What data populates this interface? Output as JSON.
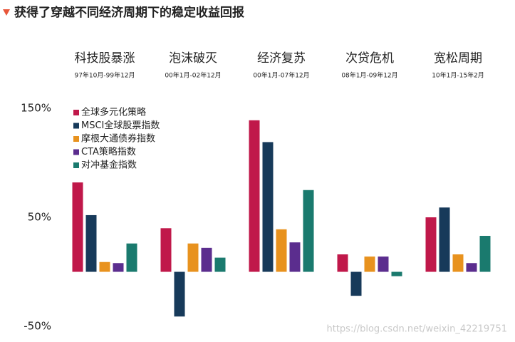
{
  "chart_data": {
    "type": "bar",
    "title": "获得了穿越不同经济周期下的稳定收益回报",
    "categories": [
      "科技股暴涨",
      "泡沫破灭",
      "经济复苏",
      "次贷危机",
      "宽松周期"
    ],
    "category_periods": [
      "97年10月-99年12月",
      "00年1月-02年12月",
      "00年1月-07年12月",
      "08年1月-09年12月",
      "10年1月-15年2月"
    ],
    "series": [
      {
        "name": "全球多元化策略",
        "color": "#c0184a",
        "values": [
          82,
          40,
          139,
          16,
          50
        ]
      },
      {
        "name": "MSCI全球股票指数",
        "color": "#173a5a",
        "values": [
          52,
          -41,
          119,
          -22,
          59
        ]
      },
      {
        "name": "摩根大通债券指数",
        "color": "#e8921e",
        "values": [
          9,
          26,
          39,
          14,
          16
        ]
      },
      {
        "name": "CTA策略指数",
        "color": "#5b2d8e",
        "values": [
          8,
          22,
          27,
          14,
          8
        ]
      },
      {
        "name": "对冲基金指数",
        "color": "#1a7a6e",
        "values": [
          26,
          13,
          75,
          -4,
          33
        ]
      }
    ],
    "ylim": [
      -50,
      150
    ],
    "yticks": [
      {
        "value": -50,
        "label": "-50%"
      },
      {
        "value": 50,
        "label": "50%"
      },
      {
        "value": 150,
        "label": "150%"
      }
    ],
    "watermark": "https://blog.csdn.net/weixin_42219751"
  }
}
